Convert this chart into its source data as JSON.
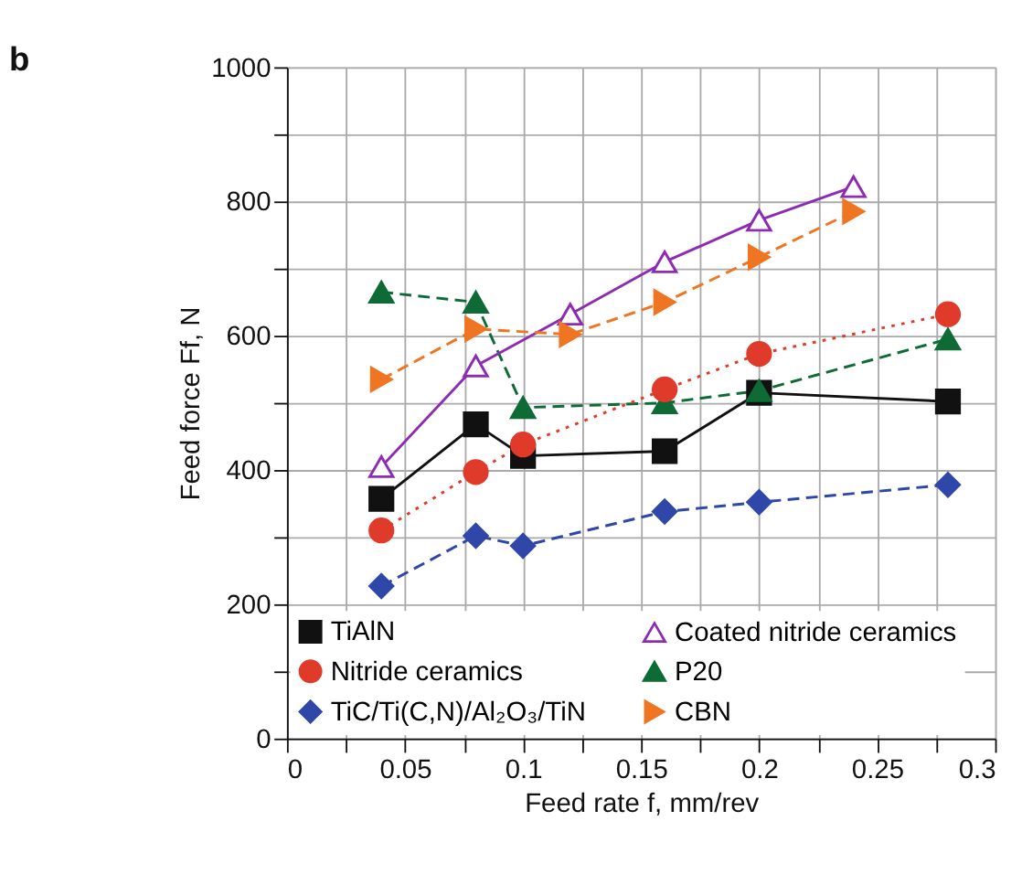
{
  "chart_data": {
    "type": "line",
    "title": "b",
    "xlabel": "Feed rate f, mm/rev",
    "ylabel": "Feed force Ff, N",
    "xlim": [
      0,
      0.3
    ],
    "ylim": [
      0,
      1000
    ],
    "xticks": [
      0,
      {
        "value": 0.025,
        "label": null
      },
      0.05,
      {
        "value": 0.075,
        "label": null
      },
      0.1,
      {
        "value": 0.125,
        "label": null
      },
      0.15,
      {
        "value": 0.175,
        "label": null
      },
      0.2,
      {
        "value": 0.225,
        "label": null
      },
      0.25,
      {
        "value": 0.275,
        "label": null
      },
      0.3
    ],
    "yticks": [
      0,
      {
        "value": 100,
        "label": null
      },
      200,
      {
        "value": 300,
        "label": null
      },
      400,
      {
        "value": 500,
        "label": null
      },
      600,
      {
        "value": 700,
        "label": null
      },
      800,
      {
        "value": 900,
        "label": null
      },
      1000
    ],
    "grid": true,
    "legend": "bottom left",
    "series": [
      {
        "name": "TiAlN",
        "color": "#111111",
        "marker": "square",
        "line_style": "solid",
        "x": [
          0.04,
          0.08,
          0.1,
          0.16,
          0.2,
          0.28
        ],
        "values": [
          357,
          468,
          421,
          428,
          515,
          502
        ]
      },
      {
        "name": "TiC/Ti(C,N)/Al₂O₃/TiN",
        "color": "#2f47a8",
        "marker": "diamond",
        "line_style": "dashed",
        "x": [
          0.04,
          0.08,
          0.1,
          0.16,
          0.2,
          0.28
        ],
        "values": [
          227,
          302,
          287,
          338,
          352,
          378
        ]
      },
      {
        "name": "P20",
        "color": "#0e6b35",
        "marker": "triangle",
        "line_style": "dashed",
        "x": [
          0.04,
          0.08,
          0.1,
          0.16,
          0.2,
          0.28
        ],
        "values": [
          665,
          650,
          493,
          500,
          518,
          595
        ]
      },
      {
        "name": "Nitride ceramics",
        "color": "#e03a2a",
        "marker": "circle",
        "line_style": "dotted",
        "x": [
          0.04,
          0.08,
          0.1,
          0.16,
          0.2,
          0.28
        ],
        "values": [
          310,
          397,
          438,
          520,
          573,
          632
        ]
      },
      {
        "name": "Coated nitride ceramics",
        "color": "#8e2bb5",
        "marker": "triangle-open",
        "line_style": "solid",
        "x": [
          0.04,
          0.08,
          0.12,
          0.16,
          0.2,
          0.24
        ],
        "values": [
          405,
          555,
          632,
          710,
          772,
          822
        ]
      },
      {
        "name": "CBN",
        "color": "#f07522",
        "marker": "triangle-right",
        "line_style": "dashed",
        "x": [
          0.04,
          0.08,
          0.12,
          0.16,
          0.2,
          0.24
        ],
        "values": [
          535,
          610,
          602,
          650,
          717,
          785
        ]
      }
    ]
  }
}
